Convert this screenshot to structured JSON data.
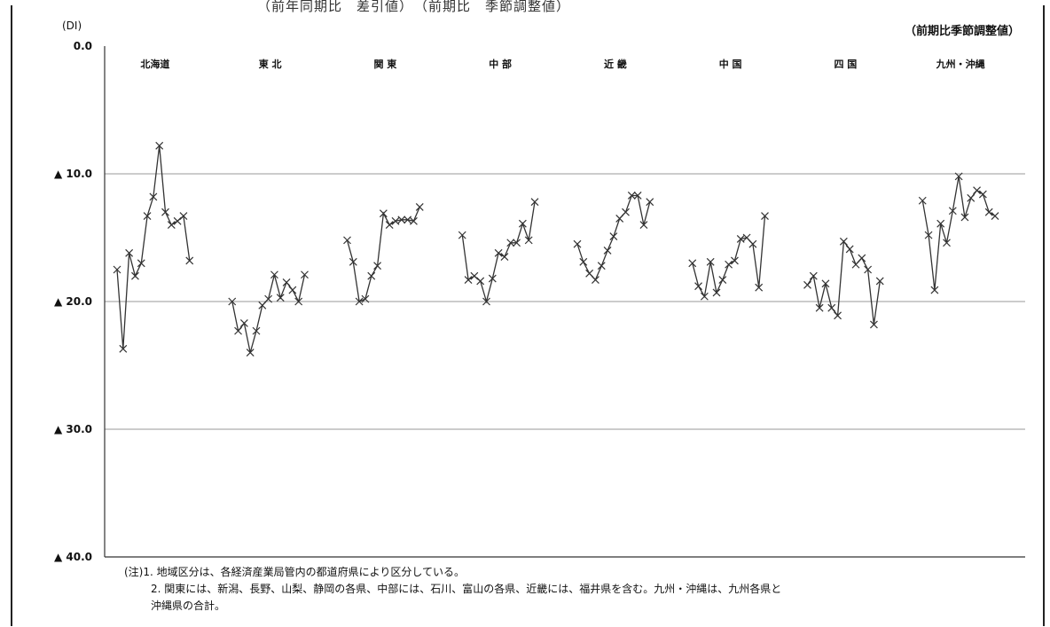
{
  "header": {
    "top_strip": "（前年同期比　差引値）　（前期比　季節調整値）",
    "unit": "(DI)",
    "note": "（前期比季節調整値）"
  },
  "footnotes": [
    "(注)1. 地域区分は、各経済産業局管内の都道府県により区分している。",
    "2. 関東には、新潟、長野、山梨、静岡の各県、中部には、石川、富山の各県、近畿には、福井県を含む。九州・沖縄は、九州各県と",
    "沖縄県の合計。"
  ],
  "colors": {
    "line": "#333333",
    "grid": "#9a9a9a",
    "axis": "#333333"
  },
  "chart_data": {
    "type": "line",
    "title": "",
    "xlabel": "",
    "ylabel": "(DI)",
    "ylim": [
      -40,
      0
    ],
    "yticks": [
      {
        "value": 0,
        "label": "0.0"
      },
      {
        "value": -10,
        "label": "▲ 10.0"
      },
      {
        "value": -20,
        "label": "▲ 20.0"
      },
      {
        "value": -30,
        "label": "▲ 30.0"
      },
      {
        "value": -40,
        "label": "▲ 40.0"
      }
    ],
    "grid": true,
    "marker": "x",
    "series": [
      {
        "name": "北海道",
        "values": [
          -17.5,
          -23.7,
          -16.2,
          -18.0,
          -17.0,
          -13.3,
          -11.8,
          -7.8,
          -13.0,
          -14.0,
          -13.7,
          -13.3,
          -16.8
        ]
      },
      {
        "name": "東 北",
        "values": [
          -20.0,
          -22.3,
          -21.7,
          -24.0,
          -22.3,
          -20.3,
          -19.8,
          -17.9,
          -19.7,
          -18.5,
          -19.1,
          -20.0,
          -17.9
        ]
      },
      {
        "name": "関 東",
        "values": [
          -15.2,
          -16.9,
          -20.0,
          -19.8,
          -18.0,
          -17.2,
          -13.1,
          -14.0,
          -13.7,
          -13.6,
          -13.6,
          -13.7,
          -12.6
        ]
      },
      {
        "name": "中 部",
        "values": [
          -14.8,
          -18.3,
          -18.0,
          -18.4,
          -20.0,
          -18.2,
          -16.2,
          -16.5,
          -15.4,
          -15.4,
          -13.9,
          -15.2,
          -12.2
        ]
      },
      {
        "name": "近 畿",
        "values": [
          -15.5,
          -16.9,
          -17.8,
          -18.3,
          -17.2,
          -16.0,
          -14.9,
          -13.5,
          -13.0,
          -11.7,
          -11.7,
          -14.0,
          -12.2
        ]
      },
      {
        "name": "中 国",
        "values": [
          -17.0,
          -18.8,
          -19.6,
          -16.9,
          -19.3,
          -18.3,
          -17.1,
          -16.8,
          -15.1,
          -15.0,
          -15.5,
          -18.9,
          -13.3
        ]
      },
      {
        "name": "四 国",
        "values": [
          -18.7,
          -18.0,
          -20.5,
          -18.6,
          -20.5,
          -21.1,
          -15.3,
          -15.9,
          -17.1,
          -16.6,
          -17.5,
          -21.8,
          -18.4
        ]
      },
      {
        "name": "九州・沖縄",
        "values": [
          -12.1,
          -14.8,
          -19.1,
          -13.9,
          -15.4,
          -12.9,
          -10.2,
          -13.4,
          -11.9,
          -11.3,
          -11.6,
          -13.0,
          -13.3
        ]
      }
    ]
  }
}
